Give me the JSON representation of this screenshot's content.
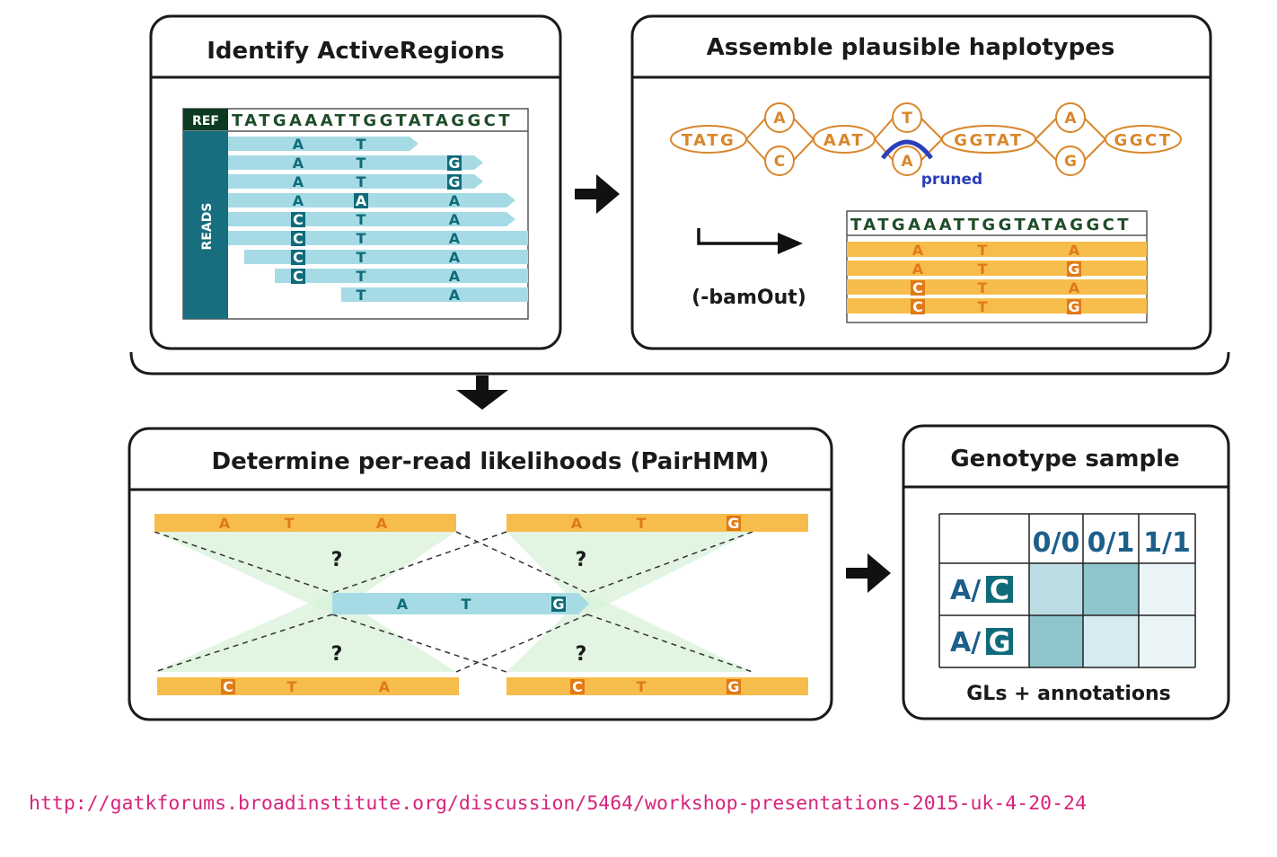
{
  "panels": {
    "active_regions": {
      "title": "Identify ActiveRegions",
      "ref_label": "REF",
      "ref_seq": "TATGAAATTGGTATAGGCT",
      "reads_label": "READS"
    },
    "haplotypes": {
      "title": "Assemble plausible haplotypes",
      "graph_nodes": [
        "TATG",
        "AAT",
        "GGTAT",
        "GGCT"
      ],
      "branch_top": [
        "A",
        "T",
        "A"
      ],
      "branch_bottom": [
        "C",
        "A",
        "G"
      ],
      "pruned_label": "pruned",
      "bamout_label": "(-bamOut)",
      "hap_seq": "TATGAAATTGGTATAGGCT"
    },
    "pairhmm": {
      "title": "Determine per-read likelihoods (PairHMM)",
      "question": "?"
    },
    "genotype": {
      "title": "Genotype sample",
      "col_headers": [
        "0/0",
        "0/1",
        "1/1"
      ],
      "row_prefix": "A/",
      "row_alleles": [
        "C",
        "G"
      ],
      "footer": "GLs + annotations"
    }
  },
  "url": "http://gatkforums.broadinstitute.org/discussion/5464/workshop-presentations-2015-uk-4-20-24",
  "colors": {
    "read_blue": "#a6dbe5",
    "dark_teal": "#0f6b7a",
    "hap_orange": "#f7bd4c",
    "node_orange": "#d9862b",
    "green_fill": "#d8f2d8",
    "url_pink": "#d6247c",
    "gl_dark": "#8fc4cd",
    "gl_mid": "#bcdde3",
    "gl_light": "#d6ebef",
    "gl_pale": "#eaf4f6"
  },
  "icons": [
    "arrow-right-icon",
    "arrow-down-icon",
    "long-arrow-right-icon"
  ]
}
